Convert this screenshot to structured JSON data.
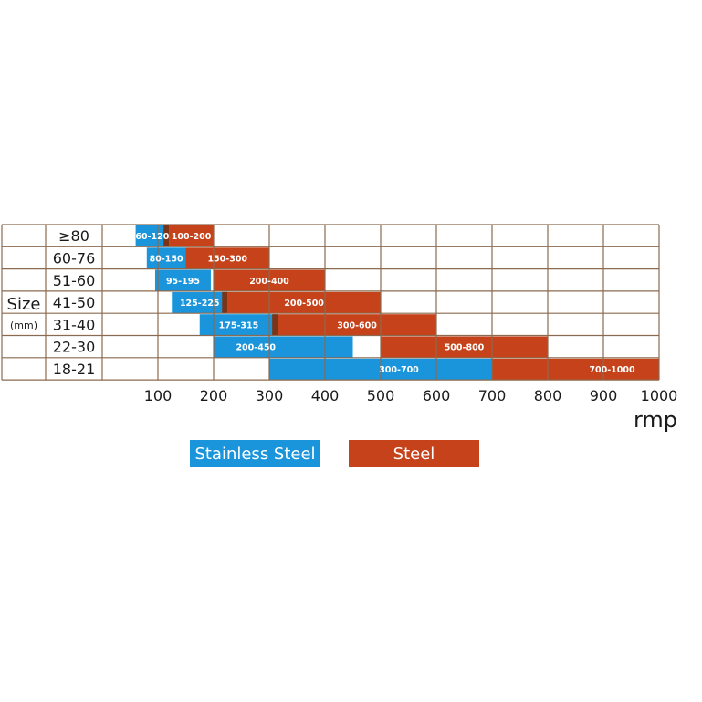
{
  "chart_data": {
    "type": "bar",
    "orientation": "horizontal-range",
    "ylabel": "Size",
    "ylabel_unit": "(mm)",
    "xlabel": "rmp",
    "xlim": [
      0,
      1000
    ],
    "x_ticks": [
      "100",
      "200",
      "300",
      "400",
      "500",
      "600",
      "700",
      "800",
      "900",
      "1000"
    ],
    "grid": true,
    "legend_position": "bottom",
    "categories": [
      "≥80",
      "60-76",
      "51-60",
      "41-50",
      "31-40",
      "22-30",
      "18-21"
    ],
    "series": [
      {
        "name": "Stainless Steel",
        "color": "#1a95db",
        "ranges": [
          [
            60,
            120
          ],
          [
            80,
            150
          ],
          [
            95,
            195
          ],
          [
            125,
            225
          ],
          [
            175,
            315
          ],
          [
            200,
            450
          ],
          [
            300,
            700
          ]
        ],
        "labels": [
          "60-120",
          "80-150",
          "95-195",
          "125-225",
          "175-315",
          "200-450",
          "300-700"
        ]
      },
      {
        "name": "Steel",
        "color": "#c5421a",
        "ranges": [
          [
            100,
            200
          ],
          [
            150,
            300
          ],
          [
            200,
            400
          ],
          [
            200,
            500
          ],
          [
            300,
            600
          ],
          [
            500,
            800
          ],
          [
            700,
            1000
          ]
        ],
        "labels": [
          "100-200",
          "150-300",
          "200-400",
          "200-500",
          "300-600",
          "500-800",
          "700-1000"
        ]
      }
    ],
    "overlap_color": "#7a3518",
    "grid_color": "#8b6a4f"
  }
}
